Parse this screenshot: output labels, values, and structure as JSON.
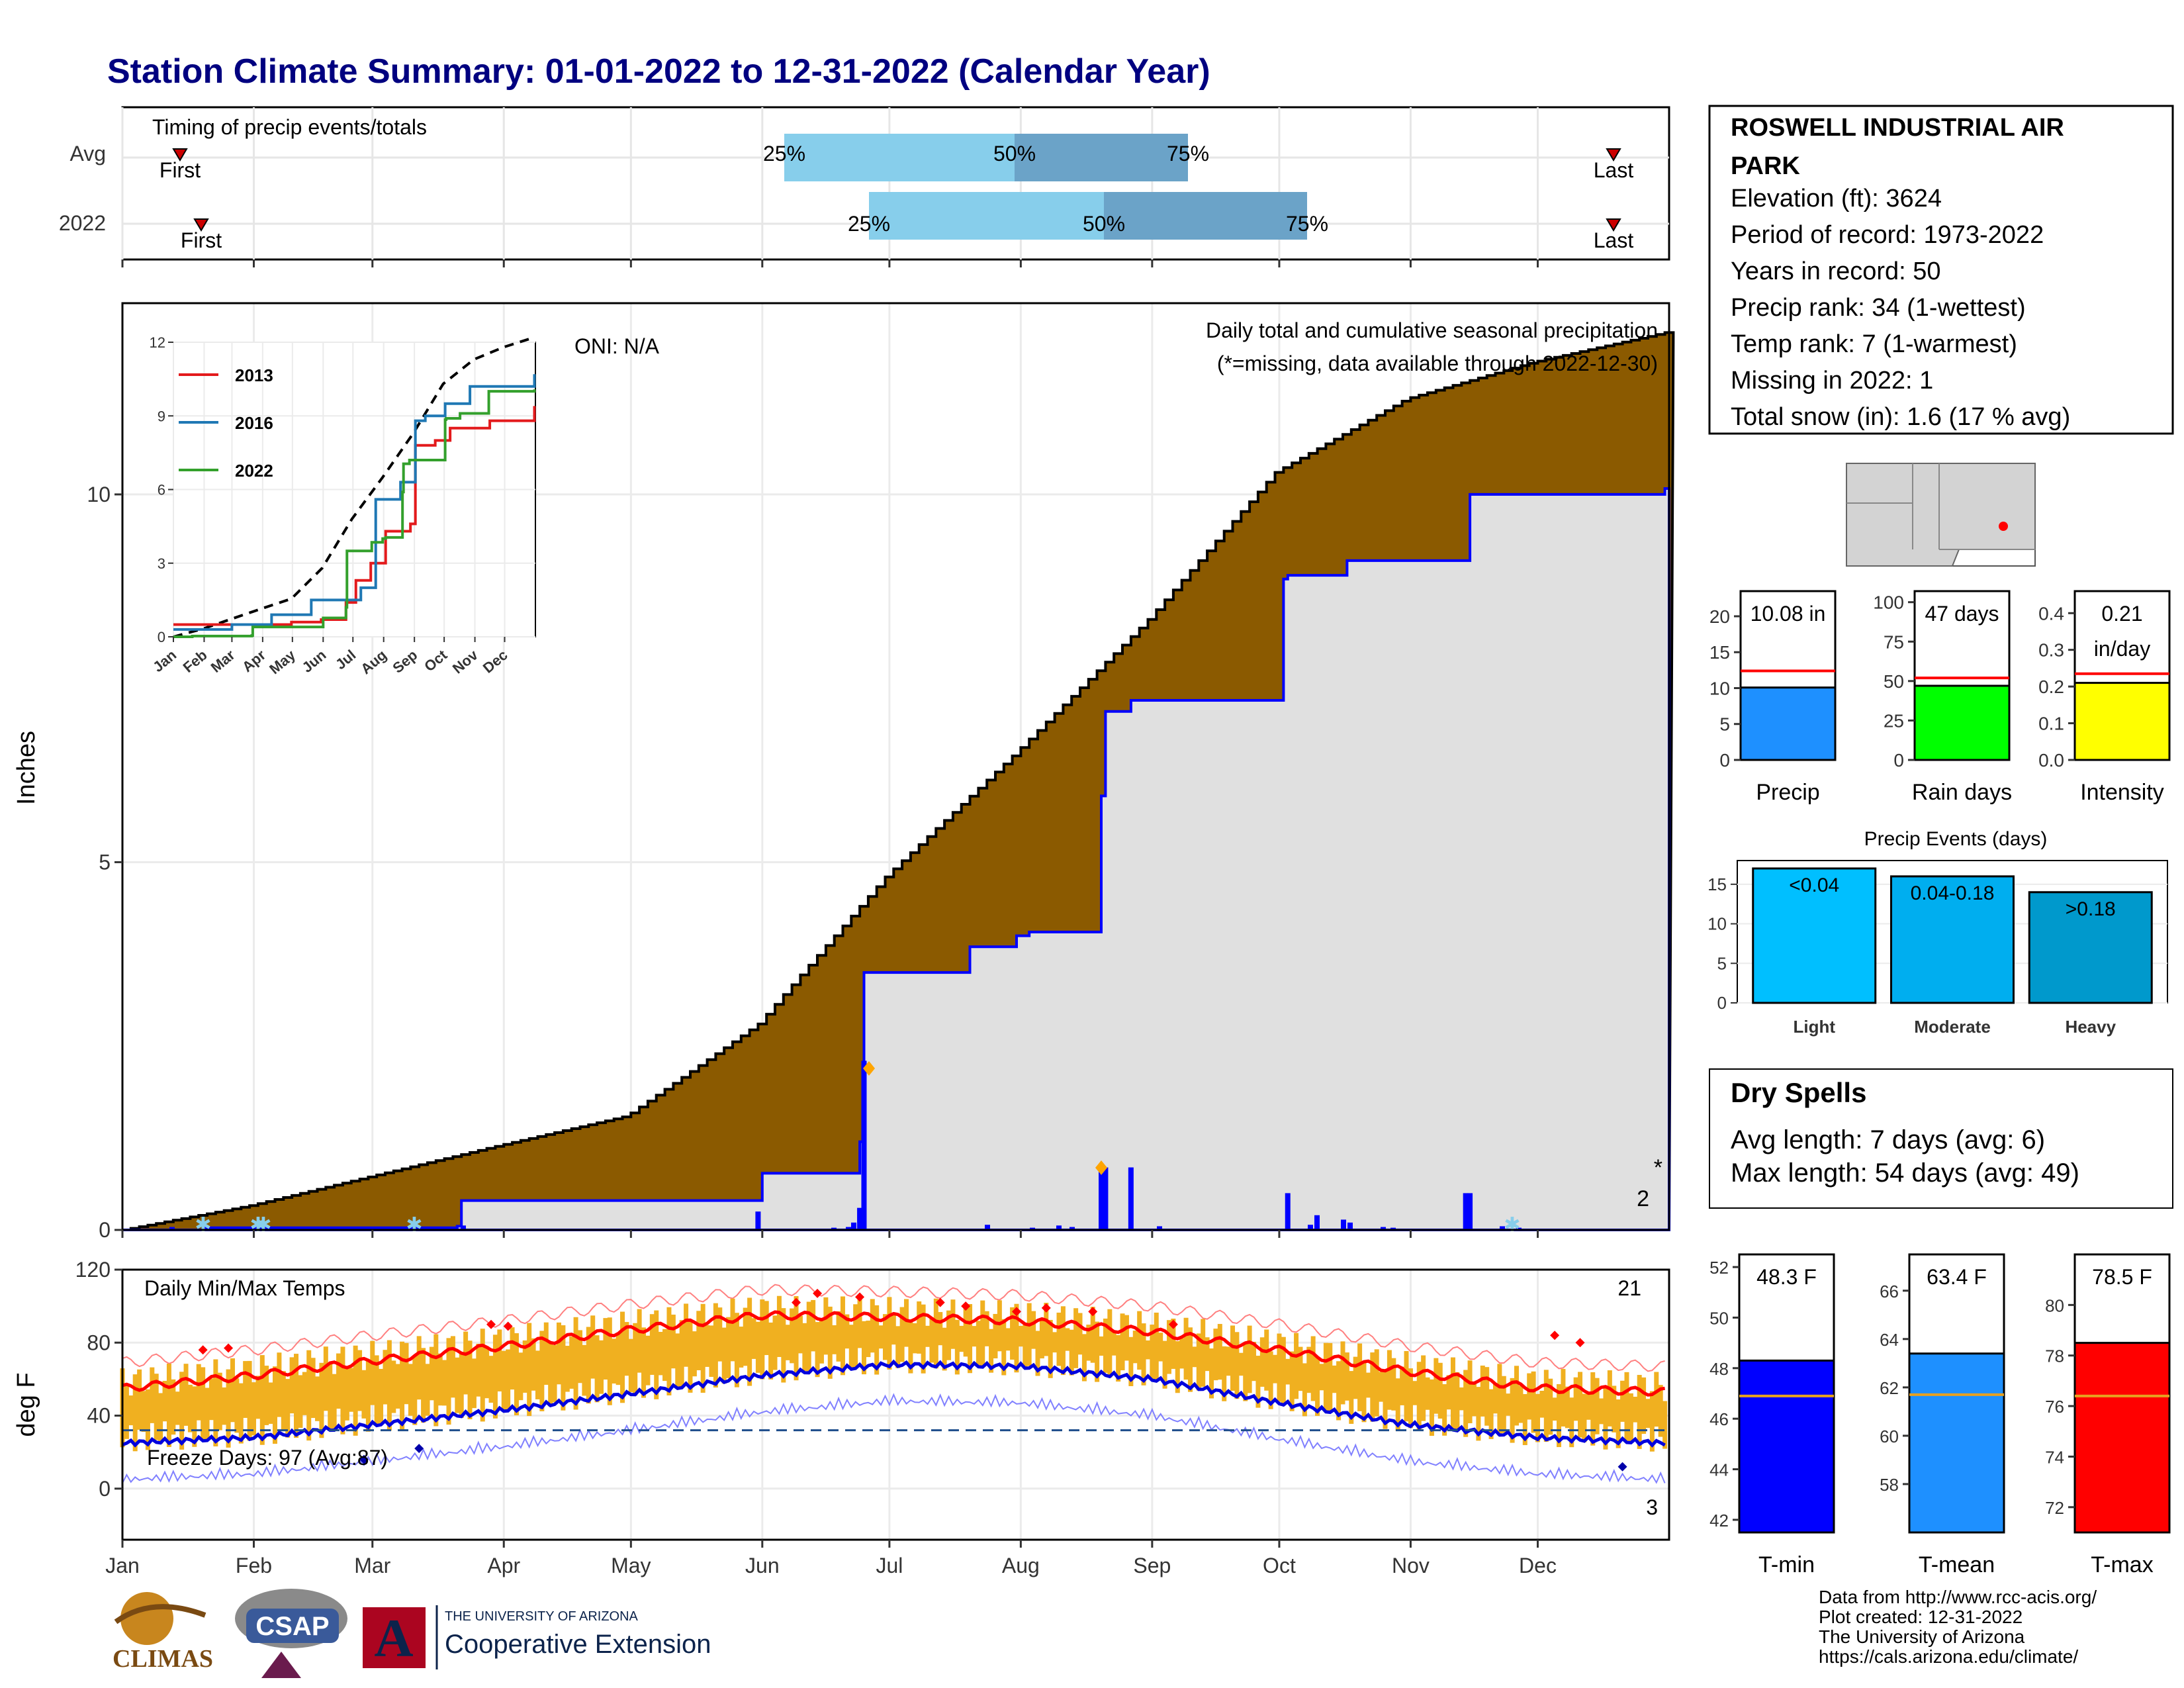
{
  "title": "Station Climate Summary: 01-01-2022 to 12-31-2022 (Calendar Year)",
  "station": {
    "name": "ROSWELL INDUSTRIAL AIR PARK",
    "elevation": "Elevation (ft): 3624",
    "period": "Period of record: 1973-2022",
    "years": "Years in record: 50",
    "precip_rank": "Precip rank: 34 (1-wettest)",
    "temp_rank": "Temp rank: 7 (1-warmest)",
    "missing": "Missing in 2022: 1",
    "snow": "Total snow (in): 1.6 (17 % avg)"
  },
  "timing": {
    "title": "Timing of precip events/totals",
    "row_labels": [
      "Avg",
      "2022"
    ],
    "first_label": "First",
    "last_label": "Last",
    "pct_labels": [
      "25%",
      "50%",
      "75%"
    ]
  },
  "main": {
    "ylabel": "Inches",
    "oni": "ONI: N/A",
    "caption1": "Daily total and cumulative seasonal precipitation",
    "caption2": "(*=missing, data available through 2022-12-30)",
    "missing_mark": "*",
    "missing_count": "2",
    "yticks": [
      "0",
      "5",
      "10"
    ]
  },
  "inset": {
    "legend": [
      "2013",
      "2016",
      "2022"
    ],
    "colors": [
      "#e31a1c",
      "#1f78b4",
      "#33a02c"
    ],
    "yticks": [
      "0",
      "3",
      "6",
      "9",
      "12"
    ],
    "months": [
      "Jan",
      "Feb",
      "Mar",
      "Apr",
      "May",
      "Jun",
      "Jul",
      "Aug",
      "Sep",
      "Oct",
      "Nov",
      "Dec"
    ]
  },
  "temps": {
    "title": "Daily Min/Max Temps",
    "ylabel": "deg F",
    "freeze": "Freeze Days: 97 (Avg:87)",
    "count_hot": "21",
    "count_cold": "3",
    "yticks": [
      "0",
      "40",
      "80",
      "120"
    ],
    "months": [
      "Jan",
      "Feb",
      "Mar",
      "Apr",
      "May",
      "Jun",
      "Jul",
      "Aug",
      "Sep",
      "Oct",
      "Nov",
      "Dec"
    ]
  },
  "stats": {
    "precip": {
      "label": "Precip",
      "value_text": "10.08 in",
      "yticks": [
        "0",
        "5",
        "10",
        "15",
        "20"
      ]
    },
    "raindays": {
      "label": "Rain days",
      "value_text": "47 days",
      "yticks": [
        "0",
        "25",
        "50",
        "75",
        "100"
      ]
    },
    "intensity": {
      "label": "Intensity",
      "value_text": "0.21",
      "unit_text": "in/day",
      "yticks": [
        "0.0",
        "0.1",
        "0.2",
        "0.3",
        "0.4"
      ]
    }
  },
  "events": {
    "title": "Precip Events (days)",
    "categories": [
      "Light",
      "Moderate",
      "Heavy"
    ],
    "bar_labels": [
      "<0.04",
      "0.04-0.18",
      ">0.18"
    ],
    "yticks": [
      "0",
      "5",
      "10",
      "15"
    ]
  },
  "dry": {
    "title": "Dry Spells",
    "avg": "Avg length: 7 days (avg: 6)",
    "max": "Max length: 54 days (avg: 49)"
  },
  "tstats": {
    "tmin": {
      "label": "T-min",
      "value_text": "48.3 F",
      "yticks": [
        "42",
        "44",
        "46",
        "48",
        "50",
        "52"
      ]
    },
    "tmean": {
      "label": "T-mean",
      "value_text": "63.4 F",
      "yticks": [
        "58",
        "60",
        "62",
        "64",
        "66"
      ]
    },
    "tmax": {
      "label": "T-max",
      "value_text": "78.5 F",
      "yticks": [
        "72",
        "74",
        "76",
        "78",
        "80"
      ]
    }
  },
  "footer": {
    "line1": "Data from http://www.rcc-acis.org/",
    "line2": "Plot created: 12-31-2022",
    "line3": "The University of Arizona",
    "line4": "https://cals.arizona.edu/climate/",
    "logo_climas": "CLIMAS",
    "logo_csap": "CSAP",
    "ua_top": "THE UNIVERSITY OF ARIZONA",
    "ua_bottom": "Cooperative Extension",
    "logo_a": "A"
  },
  "chart_data": [
    {
      "type": "bar",
      "title": "Timing of precip events/totals",
      "series": [
        {
          "name": "Avg",
          "first_day": 15,
          "q25_day": 164,
          "q50_day": 213,
          "q75_day": 249,
          "last_day": 353
        },
        {
          "name": "2022",
          "first_day": 20,
          "q25_day": 177,
          "q50_day": 231,
          "q75_day": 279,
          "last_day": 353
        }
      ]
    },
    {
      "type": "area",
      "title": "Daily total and cumulative seasonal precipitation",
      "ylabel": "Inches",
      "ylim": [
        0,
        12.6
      ],
      "x_unit": "day of year",
      "series": [
        {
          "name": "Average cumulative",
          "x": [
            1,
            31,
            59,
            90,
            120,
            151,
            181,
            212,
            243,
            273,
            304,
            334,
            365
          ],
          "y": [
            0.0,
            0.33,
            0.72,
            1.15,
            1.55,
            2.8,
            4.8,
            6.5,
            8.3,
            10.3,
            11.3,
            11.8,
            12.2
          ]
        },
        {
          "name": "2022 cumulative",
          "x": [
            1,
            20,
            80,
            81,
            151,
            152,
            175,
            176,
            201,
            212,
            215,
            232,
            233,
            239,
            240,
            275,
            276,
            290,
            318,
            319,
            365
          ],
          "y": [
            0.0,
            0.03,
            0.05,
            0.4,
            0.4,
            0.77,
            1.2,
            3.5,
            3.85,
            4.0,
            4.05,
            5.9,
            7.05,
            7.2,
            7.2,
            8.85,
            8.9,
            9.1,
            9.1,
            10.0,
            10.08
          ]
        },
        {
          "name": "2022 daily",
          "x": [
            151,
            175,
            176,
            232,
            233,
            239,
            276,
            318,
            319
          ],
          "y": [
            0.25,
            0.3,
            2.3,
            0.85,
            0.85,
            0.85,
            0.5,
            0.5,
            0.5
          ]
        }
      ]
    },
    {
      "type": "line",
      "title": "Daily Min/Max Temps",
      "ylabel": "deg F",
      "ylim": [
        -28,
        120
      ],
      "x_unit": "day of year",
      "series": [
        {
          "name": "Avg max",
          "x": [
            1,
            32,
            60,
            91,
            121,
            152,
            182,
            213,
            244,
            274,
            305,
            335,
            365
          ],
          "y": [
            55,
            62,
            70,
            78,
            87,
            95,
            94,
            92,
            86,
            76,
            64,
            55,
            53
          ]
        },
        {
          "name": "Avg min",
          "x": [
            1,
            32,
            60,
            91,
            121,
            152,
            182,
            213,
            244,
            274,
            305,
            335,
            365
          ],
          "y": [
            25,
            28,
            35,
            43,
            52,
            62,
            68,
            67,
            60,
            47,
            35,
            28,
            25
          ]
        },
        {
          "name": "Freeze line",
          "x": [
            1,
            365
          ],
          "y": [
            32,
            32
          ]
        }
      ]
    },
    {
      "type": "bar",
      "categories": [
        "Precip",
        "Rain days",
        "Intensity"
      ],
      "values": [
        10.08,
        47,
        0.21
      ],
      "averages": [
        12.4,
        52,
        0.235
      ]
    },
    {
      "type": "bar",
      "title": "Precip Events (days)",
      "categories": [
        "Light",
        "Moderate",
        "Heavy"
      ],
      "values": [
        17,
        16,
        14
      ],
      "ylim": [
        0,
        18
      ]
    },
    {
      "type": "bar",
      "categories": [
        "T-min",
        "T-mean",
        "T-max"
      ],
      "values": [
        48.3,
        63.4,
        78.5
      ],
      "averages": [
        46.9,
        61.7,
        76.4
      ]
    }
  ]
}
